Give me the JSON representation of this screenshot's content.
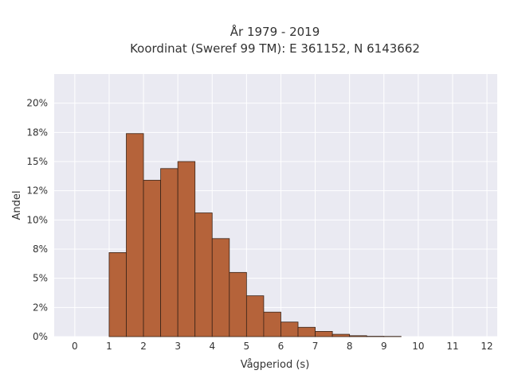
{
  "chart_data": {
    "type": "bar",
    "title": [
      "År 1979 - 2019",
      "Koordinat (Sweref 99 TM): E 361152, N 6143662"
    ],
    "xlabel": "Vågperiod (s)",
    "ylabel": "Andel",
    "xlim": [
      -0.6,
      12.3
    ],
    "ylim": [
      0,
      0.225
    ],
    "x_ticks": [
      0,
      1,
      2,
      3,
      4,
      5,
      6,
      7,
      8,
      9,
      10,
      11,
      12
    ],
    "x_tick_labels": [
      "0",
      "1",
      "2",
      "3",
      "4",
      "5",
      "6",
      "7",
      "8",
      "9",
      "10",
      "11",
      "12"
    ],
    "y_ticks": [
      0,
      0.025,
      0.05,
      0.075,
      0.1,
      0.125,
      0.15,
      0.175,
      0.2
    ],
    "y_tick_labels": [
      "0%",
      "2%",
      "5%",
      "8%",
      "10%",
      "12%",
      "15%",
      "18%",
      "20%"
    ],
    "bin_width": 0.5,
    "bins": [
      {
        "start": 1.0,
        "value": 0.072
      },
      {
        "start": 1.5,
        "value": 0.174
      },
      {
        "start": 2.0,
        "value": 0.134
      },
      {
        "start": 2.5,
        "value": 0.144
      },
      {
        "start": 3.0,
        "value": 0.15
      },
      {
        "start": 3.5,
        "value": 0.106
      },
      {
        "start": 4.0,
        "value": 0.084
      },
      {
        "start": 4.5,
        "value": 0.055
      },
      {
        "start": 5.0,
        "value": 0.035
      },
      {
        "start": 5.5,
        "value": 0.021
      },
      {
        "start": 6.0,
        "value": 0.0125
      },
      {
        "start": 6.5,
        "value": 0.008
      },
      {
        "start": 7.0,
        "value": 0.0045
      },
      {
        "start": 7.5,
        "value": 0.002
      },
      {
        "start": 8.0,
        "value": 0.0008
      },
      {
        "start": 8.5,
        "value": 0.0003
      },
      {
        "start": 9.0,
        "value": 0.0002
      }
    ],
    "grid": true,
    "colors": {
      "bar_fill": "#b5633a",
      "bar_stroke": "#3a2418",
      "plot_background": "#eaeaf2",
      "grid": "#ffffff"
    }
  }
}
